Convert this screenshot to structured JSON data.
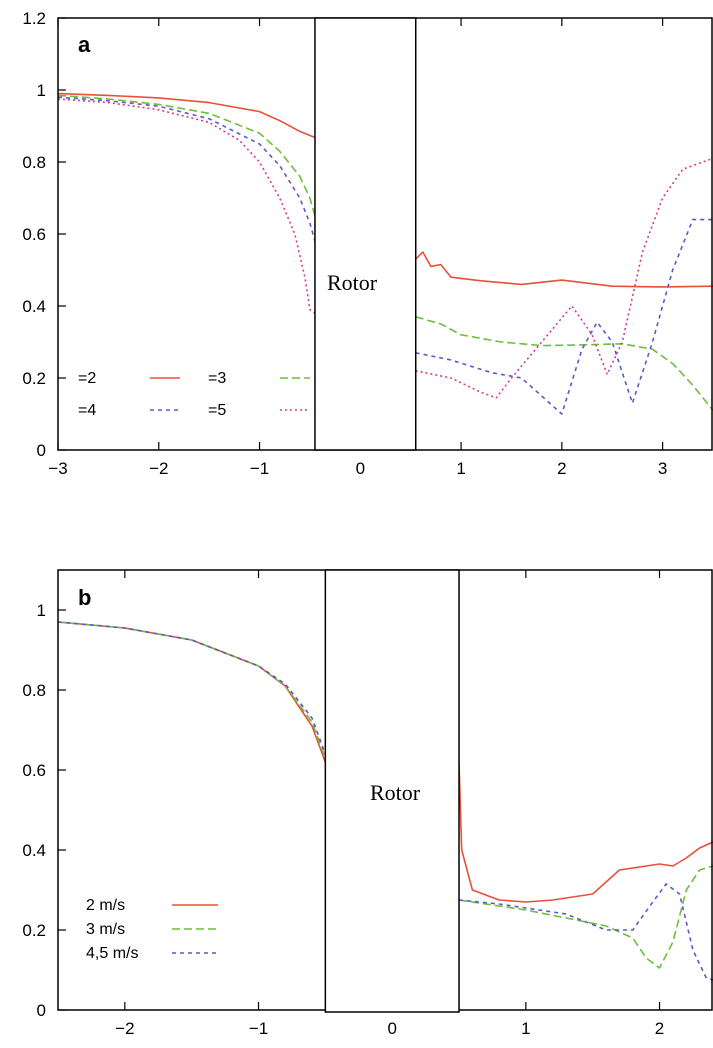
{
  "chart_data": [
    {
      "panel": "a",
      "type": "line",
      "rotor_label": "Rotor",
      "rotor_x_range": [
        -0.45,
        0.55
      ],
      "xlim": [
        -3,
        3.5
      ],
      "ylim": [
        0,
        1.2
      ],
      "xticks": [
        -3,
        -2,
        -1,
        0,
        1,
        2,
        3
      ],
      "yticks": [
        0,
        0.2,
        0.4,
        0.6,
        0.8,
        1,
        1.2
      ],
      "xtick_labels": [
        "−3",
        "−2",
        "−1",
        "0",
        "1",
        "2",
        "3"
      ],
      "ytick_labels": [
        "0",
        "0.2",
        "0.4",
        "0.6",
        "0.8",
        "1",
        "1.2"
      ],
      "legend_position": "bottom-left",
      "series": [
        {
          "name": "=2",
          "color": "#e8503a",
          "dash": "solid",
          "upstream": [
            [
              -3,
              0.99
            ],
            [
              -2.5,
              0.985
            ],
            [
              -2,
              0.978
            ],
            [
              -1.5,
              0.965
            ],
            [
              -1,
              0.94
            ],
            [
              -0.8,
              0.915
            ],
            [
              -0.6,
              0.885
            ],
            [
              -0.45,
              0.868
            ]
          ],
          "downstream": [
            [
              0.55,
              0.53
            ],
            [
              0.62,
              0.55
            ],
            [
              0.7,
              0.51
            ],
            [
              0.8,
              0.515
            ],
            [
              0.9,
              0.48
            ],
            [
              1.2,
              0.47
            ],
            [
              1.6,
              0.46
            ],
            [
              2.0,
              0.472
            ],
            [
              2.5,
              0.455
            ],
            [
              3.0,
              0.453
            ],
            [
              3.5,
              0.455
            ]
          ]
        },
        {
          "name": "=3",
          "color": "#6cbf3a",
          "dash": "8,4",
          "upstream": [
            [
              -3,
              0.985
            ],
            [
              -2.5,
              0.975
            ],
            [
              -2,
              0.96
            ],
            [
              -1.5,
              0.935
            ],
            [
              -1,
              0.88
            ],
            [
              -0.8,
              0.83
            ],
            [
              -0.6,
              0.76
            ],
            [
              -0.5,
              0.7
            ],
            [
              -0.45,
              0.65
            ]
          ],
          "downstream": [
            [
              0.55,
              0.37
            ],
            [
              0.8,
              0.35
            ],
            [
              1.0,
              0.32
            ],
            [
              1.4,
              0.3
            ],
            [
              1.8,
              0.29
            ],
            [
              2.2,
              0.292
            ],
            [
              2.6,
              0.295
            ],
            [
              2.9,
              0.28
            ],
            [
              3.1,
              0.24
            ],
            [
              3.3,
              0.18
            ],
            [
              3.5,
              0.11
            ]
          ]
        },
        {
          "name": "=4",
          "color": "#5a5ac8",
          "dash": "4,4",
          "upstream": [
            [
              -3,
              0.98
            ],
            [
              -2.5,
              0.97
            ],
            [
              -2,
              0.955
            ],
            [
              -1.5,
              0.92
            ],
            [
              -1,
              0.85
            ],
            [
              -0.8,
              0.79
            ],
            [
              -0.6,
              0.7
            ],
            [
              -0.5,
              0.63
            ],
            [
              -0.45,
              0.58
            ]
          ],
          "downstream": [
            [
              0.55,
              0.27
            ],
            [
              0.9,
              0.25
            ],
            [
              1.3,
              0.215
            ],
            [
              1.6,
              0.2
            ],
            [
              1.8,
              0.15
            ],
            [
              2.0,
              0.1
            ],
            [
              2.2,
              0.28
            ],
            [
              2.35,
              0.355
            ],
            [
              2.5,
              0.3
            ],
            [
              2.7,
              0.13
            ],
            [
              2.9,
              0.3
            ],
            [
              3.1,
              0.5
            ],
            [
              3.3,
              0.64
            ],
            [
              3.5,
              0.64
            ]
          ]
        },
        {
          "name": "=5",
          "color": "#d63a8a",
          "dash": "2,3",
          "upstream": [
            [
              -3,
              0.975
            ],
            [
              -2.5,
              0.965
            ],
            [
              -2,
              0.945
            ],
            [
              -1.5,
              0.91
            ],
            [
              -1.2,
              0.86
            ],
            [
              -1,
              0.8
            ],
            [
              -0.8,
              0.7
            ],
            [
              -0.65,
              0.6
            ],
            [
              -0.55,
              0.48
            ],
            [
              -0.5,
              0.39
            ],
            [
              -0.45,
              0.38
            ]
          ],
          "downstream": [
            [
              0.55,
              0.22
            ],
            [
              0.9,
              0.2
            ],
            [
              1.2,
              0.16
            ],
            [
              1.35,
              0.145
            ],
            [
              1.5,
              0.2
            ],
            [
              1.8,
              0.3
            ],
            [
              2.1,
              0.4
            ],
            [
              2.3,
              0.32
            ],
            [
              2.45,
              0.21
            ],
            [
              2.6,
              0.3
            ],
            [
              2.8,
              0.55
            ],
            [
              3.0,
              0.7
            ],
            [
              3.2,
              0.78
            ],
            [
              3.5,
              0.81
            ]
          ]
        }
      ]
    },
    {
      "panel": "b",
      "type": "line",
      "rotor_label": "Rotor",
      "rotor_x_range": [
        -0.5,
        0.5
      ],
      "xlim": [
        -2.5,
        2.4
      ],
      "ylim": [
        0,
        1.1
      ],
      "xticks": [
        -2,
        -1,
        0,
        1,
        2
      ],
      "yticks": [
        0,
        0.2,
        0.4,
        0.6,
        0.8,
        1
      ],
      "xtick_labels": [
        "−2",
        "−1",
        "0",
        "1",
        "2"
      ],
      "ytick_labels": [
        "0",
        "0.2",
        "0.4",
        "0.6",
        "0.8",
        "1"
      ],
      "legend_position": "bottom-left",
      "series": [
        {
          "name": "2 m/s",
          "color": "#e8503a",
          "dash": "solid",
          "upstream": [
            [
              -2.5,
              0.97
            ],
            [
              -2,
              0.955
            ],
            [
              -1.5,
              0.925
            ],
            [
              -1,
              0.86
            ],
            [
              -0.8,
              0.81
            ],
            [
              -0.6,
              0.71
            ],
            [
              -0.5,
              0.62
            ]
          ],
          "downstream": [
            [
              0.5,
              0.62
            ],
            [
              0.52,
              0.4
            ],
            [
              0.6,
              0.3
            ],
            [
              0.8,
              0.275
            ],
            [
              1.0,
              0.27
            ],
            [
              1.2,
              0.275
            ],
            [
              1.5,
              0.29
            ],
            [
              1.7,
              0.35
            ],
            [
              1.9,
              0.36
            ],
            [
              2.0,
              0.365
            ],
            [
              2.1,
              0.36
            ],
            [
              2.2,
              0.38
            ],
            [
              2.3,
              0.405
            ],
            [
              2.4,
              0.42
            ]
          ]
        },
        {
          "name": "3 m/s",
          "color": "#6cbf3a",
          "dash": "8,4",
          "upstream": [
            [
              -2.5,
              0.97
            ],
            [
              -2,
              0.955
            ],
            [
              -1.5,
              0.925
            ],
            [
              -1,
              0.86
            ],
            [
              -0.8,
              0.81
            ],
            [
              -0.6,
              0.72
            ],
            [
              -0.5,
              0.63
            ]
          ],
          "downstream": [
            [
              0.5,
              0.275
            ],
            [
              0.7,
              0.265
            ],
            [
              1.0,
              0.25
            ],
            [
              1.3,
              0.23
            ],
            [
              1.6,
              0.21
            ],
            [
              1.8,
              0.18
            ],
            [
              1.9,
              0.13
            ],
            [
              2.0,
              0.105
            ],
            [
              2.1,
              0.17
            ],
            [
              2.2,
              0.3
            ],
            [
              2.3,
              0.35
            ],
            [
              2.4,
              0.36
            ]
          ]
        },
        {
          "name": "4,5 m/s",
          "color": "#5a5ac8",
          "dash": "4,4",
          "upstream": [
            [
              -2.5,
              0.97
            ],
            [
              -2,
              0.955
            ],
            [
              -1.5,
              0.925
            ],
            [
              -1,
              0.86
            ],
            [
              -0.8,
              0.815
            ],
            [
              -0.6,
              0.73
            ],
            [
              -0.5,
              0.64
            ]
          ],
          "downstream": [
            [
              0.5,
              0.275
            ],
            [
              0.8,
              0.265
            ],
            [
              1.0,
              0.255
            ],
            [
              1.3,
              0.24
            ],
            [
              1.6,
              0.2
            ],
            [
              1.8,
              0.2
            ],
            [
              1.95,
              0.27
            ],
            [
              2.05,
              0.315
            ],
            [
              2.15,
              0.29
            ],
            [
              2.25,
              0.15
            ],
            [
              2.35,
              0.08
            ],
            [
              2.4,
              0.075
            ]
          ]
        }
      ]
    }
  ]
}
